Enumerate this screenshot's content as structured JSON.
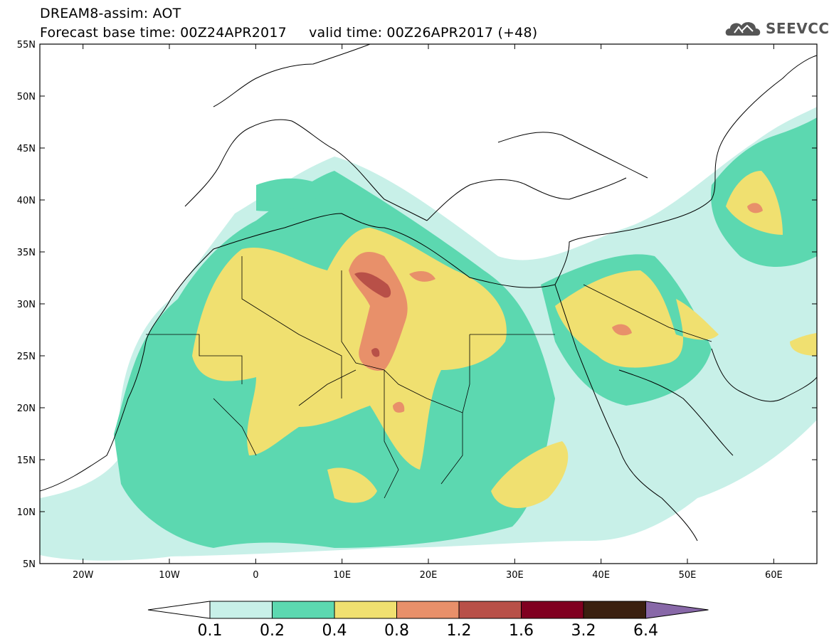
{
  "header": {
    "title_line1": "DREAM8-assim: AOT",
    "title_line2": "Forecast base time: 00Z24APR2017     valid time: 00Z26APR2017 (+48)",
    "logo_text": "SEEVCCC"
  },
  "map": {
    "lon_ticks": [
      "20W",
      "10W",
      "0",
      "10E",
      "20E",
      "30E",
      "40E",
      "50E",
      "60E"
    ],
    "lat_ticks": [
      "55N",
      "50N",
      "45N",
      "40N",
      "35N",
      "30N",
      "25N",
      "20N",
      "15N",
      "10N",
      "5N"
    ],
    "extent": {
      "lon_min": -25,
      "lon_max": 65,
      "lat_min": 5,
      "lat_max": 55
    }
  },
  "legend": {
    "levels": [
      "0.1",
      "0.2",
      "0.4",
      "0.8",
      "1.2",
      "1.6",
      "3.2",
      "6.4"
    ],
    "colors": [
      "#ffffff",
      "#c8f0e8",
      "#5cd8b0",
      "#f0e070",
      "#e8906a",
      "#b85048",
      "#800020",
      "#3a2010",
      "#8868a8"
    ]
  }
}
